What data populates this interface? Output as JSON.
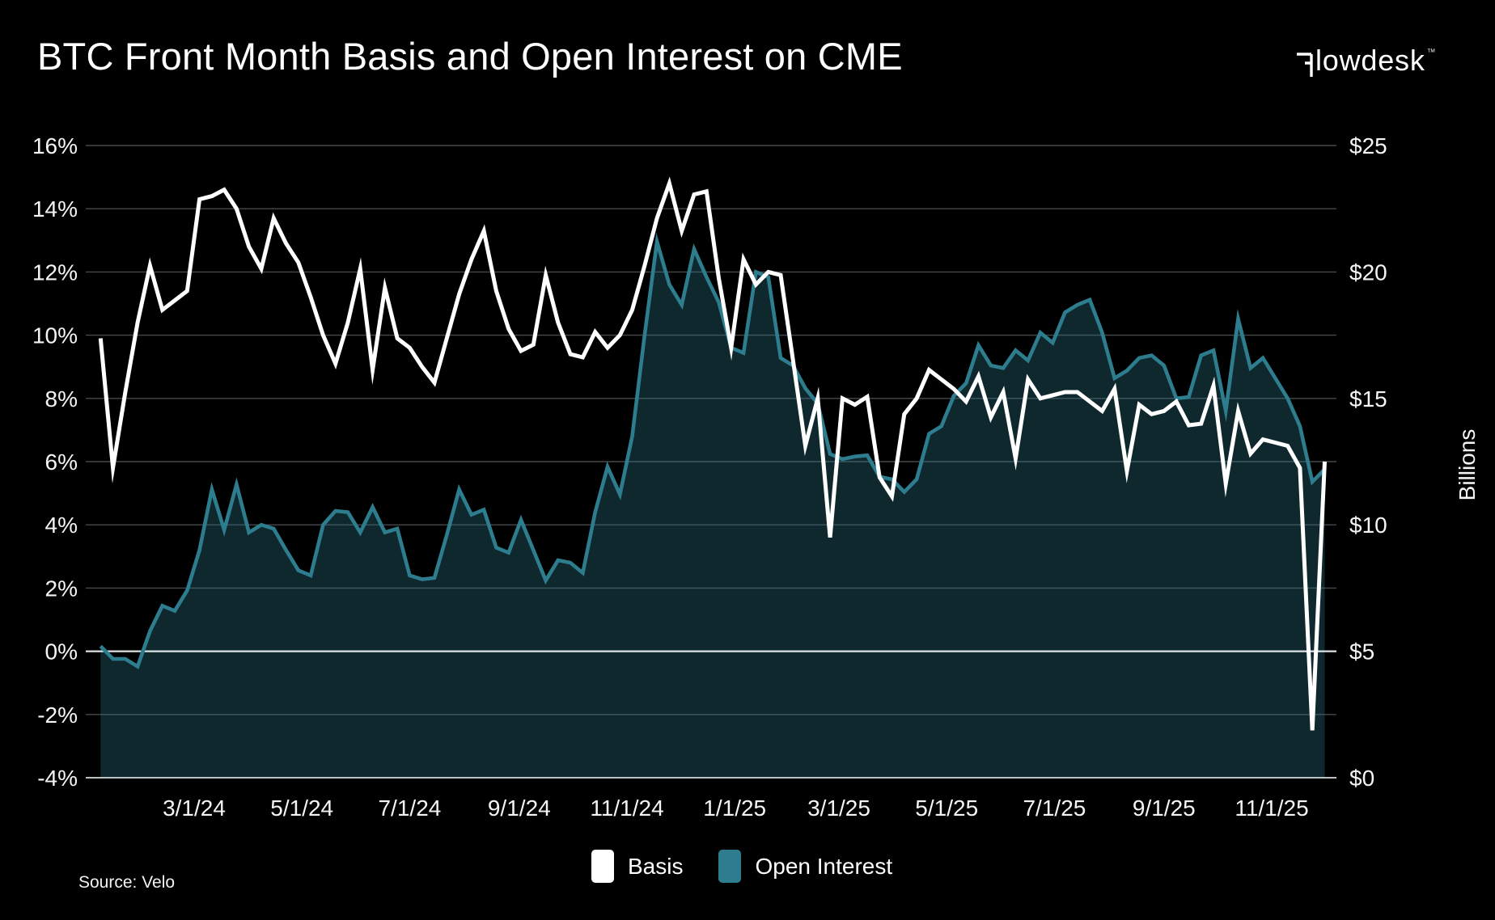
{
  "title": "BTC Front Month Basis and Open Interest on CME",
  "logo": {
    "text": "flowdesk",
    "trademark": "™"
  },
  "source": "Source: Velo",
  "legend": [
    {
      "label": "Basis",
      "color": "#ffffff"
    },
    {
      "label": "Open Interest",
      "color": "#2d7d8e"
    }
  ],
  "colors": {
    "background": "#000000",
    "basis_line": "#ffffff",
    "open_interest_line": "#2d7d8e",
    "open_interest_fill": "rgba(45,125,142,0.32)",
    "gridline": "#45494c",
    "zero_line": "#e9eff1",
    "tick_text": "#f5f5f5"
  },
  "chart_data": {
    "type": "area",
    "title": "BTC Front Month Basis and Open Interest on CME",
    "x": [
      "2024-01-08",
      "2024-01-15",
      "2024-01-22",
      "2024-01-29",
      "2024-02-05",
      "2024-02-12",
      "2024-02-19",
      "2024-02-26",
      "2024-03-04",
      "2024-03-11",
      "2024-03-18",
      "2024-03-25",
      "2024-04-01",
      "2024-04-08",
      "2024-04-15",
      "2024-04-22",
      "2024-04-29",
      "2024-05-06",
      "2024-05-13",
      "2024-05-20",
      "2024-05-27",
      "2024-06-03",
      "2024-06-10",
      "2024-06-17",
      "2024-06-24",
      "2024-07-01",
      "2024-07-08",
      "2024-07-15",
      "2024-07-22",
      "2024-07-29",
      "2024-08-05",
      "2024-08-12",
      "2024-08-19",
      "2024-08-26",
      "2024-09-02",
      "2024-09-09",
      "2024-09-16",
      "2024-09-23",
      "2024-09-30",
      "2024-10-07",
      "2024-10-14",
      "2024-10-21",
      "2024-10-28",
      "2024-11-04",
      "2024-11-11",
      "2024-11-18",
      "2024-11-25",
      "2024-12-02",
      "2024-12-09",
      "2024-12-16",
      "2024-12-23",
      "2024-12-30",
      "2025-01-06",
      "2025-01-13",
      "2025-01-20",
      "2025-01-27",
      "2025-02-03",
      "2025-02-10",
      "2025-02-17",
      "2025-02-24",
      "2025-03-03",
      "2025-03-10",
      "2025-03-17",
      "2025-03-24",
      "2025-03-31",
      "2025-04-07",
      "2025-04-14",
      "2025-04-21",
      "2025-04-28",
      "2025-05-05",
      "2025-05-12",
      "2025-05-19",
      "2025-05-26",
      "2025-06-02",
      "2025-06-09",
      "2025-06-16",
      "2025-06-23",
      "2025-06-30",
      "2025-07-07",
      "2025-07-14",
      "2025-07-21",
      "2025-07-28",
      "2025-08-04",
      "2025-08-11",
      "2025-08-18",
      "2025-08-25",
      "2025-09-01",
      "2025-09-08",
      "2025-09-15",
      "2025-09-22",
      "2025-09-29",
      "2025-10-06",
      "2025-10-13",
      "2025-10-20",
      "2025-10-27",
      "2025-11-03",
      "2025-11-10",
      "2025-11-17",
      "2025-11-24",
      "2025-12-01"
    ],
    "series": [
      {
        "name": "Basis",
        "type": "line",
        "axis": "left",
        "unit": "%",
        "color": "#ffffff",
        "values": [
          9.9,
          5.8,
          8.2,
          10.4,
          12.2,
          10.8,
          11.1,
          11.4,
          14.3,
          14.4,
          14.6,
          14.0,
          12.8,
          12.1,
          13.7,
          12.9,
          12.3,
          11.2,
          10.0,
          9.1,
          10.4,
          12.1,
          8.9,
          11.5,
          9.9,
          9.6,
          9.0,
          8.5,
          9.9,
          11.3,
          12.4,
          13.3,
          11.4,
          10.2,
          9.5,
          9.7,
          11.9,
          10.4,
          9.4,
          9.3,
          10.1,
          9.6,
          10.0,
          10.8,
          12.2,
          13.7,
          14.8,
          13.3,
          14.45,
          14.55,
          11.8,
          9.6,
          12.4,
          11.6,
          12.0,
          11.9,
          9.2,
          6.5,
          8.0,
          3.6,
          8.0,
          7.8,
          8.05,
          5.5,
          4.9,
          7.5,
          8.0,
          8.9,
          8.6,
          8.3,
          7.9,
          8.7,
          7.4,
          8.2,
          6.1,
          8.6,
          8.0,
          8.1,
          8.2,
          8.2,
          7.9,
          7.6,
          8.3,
          5.7,
          7.8,
          7.5,
          7.6,
          7.9,
          7.15,
          7.2,
          8.4,
          5.3,
          7.6,
          6.25,
          6.7,
          6.6,
          6.5,
          5.8,
          -2.5,
          6.0
        ]
      },
      {
        "name": "Open Interest",
        "type": "area",
        "axis": "right",
        "unit": "$B",
        "color": "#2d7d8e",
        "values": [
          5.2,
          4.7,
          4.7,
          4.4,
          5.8,
          6.8,
          6.6,
          7.4,
          9.0,
          11.4,
          9.8,
          11.6,
          9.7,
          10.0,
          9.85,
          9.0,
          8.2,
          8.0,
          10.0,
          10.55,
          10.5,
          9.7,
          10.7,
          9.7,
          9.85,
          8.0,
          7.85,
          7.9,
          9.6,
          11.4,
          10.4,
          10.6,
          9.1,
          8.9,
          10.2,
          9.0,
          7.8,
          8.6,
          8.5,
          8.1,
          10.5,
          12.3,
          11.2,
          13.5,
          17.5,
          21.2,
          19.5,
          18.7,
          20.9,
          19.8,
          18.8,
          17.0,
          16.8,
          20.0,
          19.8,
          16.6,
          16.3,
          15.4,
          14.8,
          12.8,
          12.6,
          12.7,
          12.75,
          11.9,
          11.8,
          11.3,
          11.8,
          13.6,
          13.9,
          15.1,
          15.6,
          17.1,
          16.3,
          16.2,
          16.9,
          16.5,
          17.6,
          17.2,
          18.4,
          18.7,
          18.9,
          17.6,
          15.8,
          16.1,
          16.6,
          16.7,
          16.3,
          15.0,
          15.05,
          16.7,
          16.9,
          14.5,
          18.15,
          16.2,
          16.6,
          15.8,
          15.0,
          13.9,
          11.7,
          12.2
        ]
      }
    ],
    "left_axis": {
      "min": -4,
      "max": 16,
      "unit": "%",
      "ticks": [
        {
          "label": "16%",
          "value": 16
        },
        {
          "label": "14%",
          "value": 14
        },
        {
          "label": "12%",
          "value": 12
        },
        {
          "label": "10%",
          "value": 10
        },
        {
          "label": "8%",
          "value": 8
        },
        {
          "label": "6%",
          "value": 6
        },
        {
          "label": "4%",
          "value": 4
        },
        {
          "label": "2%",
          "value": 2
        },
        {
          "label": "0%",
          "value": 0
        },
        {
          "label": "-2%",
          "value": -2
        },
        {
          "label": "-4%",
          "value": -4
        }
      ]
    },
    "right_axis": {
      "min": 0,
      "max": 25,
      "unit": "$B",
      "label": "Billions",
      "ticks": [
        {
          "label": "$25",
          "value": 25
        },
        {
          "label": "$20",
          "value": 20
        },
        {
          "label": "$15",
          "value": 15
        },
        {
          "label": "$10",
          "value": 10
        },
        {
          "label": "$5",
          "value": 5
        },
        {
          "label": "$0",
          "value": 0
        }
      ]
    },
    "x_ticks": [
      {
        "label": "3/1/24",
        "date": "2024-03-01"
      },
      {
        "label": "5/1/24",
        "date": "2024-05-01"
      },
      {
        "label": "7/1/24",
        "date": "2024-07-01"
      },
      {
        "label": "9/1/24",
        "date": "2024-09-01"
      },
      {
        "label": "11/1/24",
        "date": "2024-11-01"
      },
      {
        "label": "1/1/25",
        "date": "2025-01-01"
      },
      {
        "label": "3/1/25",
        "date": "2025-03-01"
      },
      {
        "label": "5/1/25",
        "date": "2025-05-01"
      },
      {
        "label": "7/1/25",
        "date": "2025-07-01"
      },
      {
        "label": "9/1/25",
        "date": "2025-09-01"
      },
      {
        "label": "11/1/25",
        "date": "2025-11-01"
      }
    ],
    "grid": true,
    "legend_position": "bottom"
  }
}
